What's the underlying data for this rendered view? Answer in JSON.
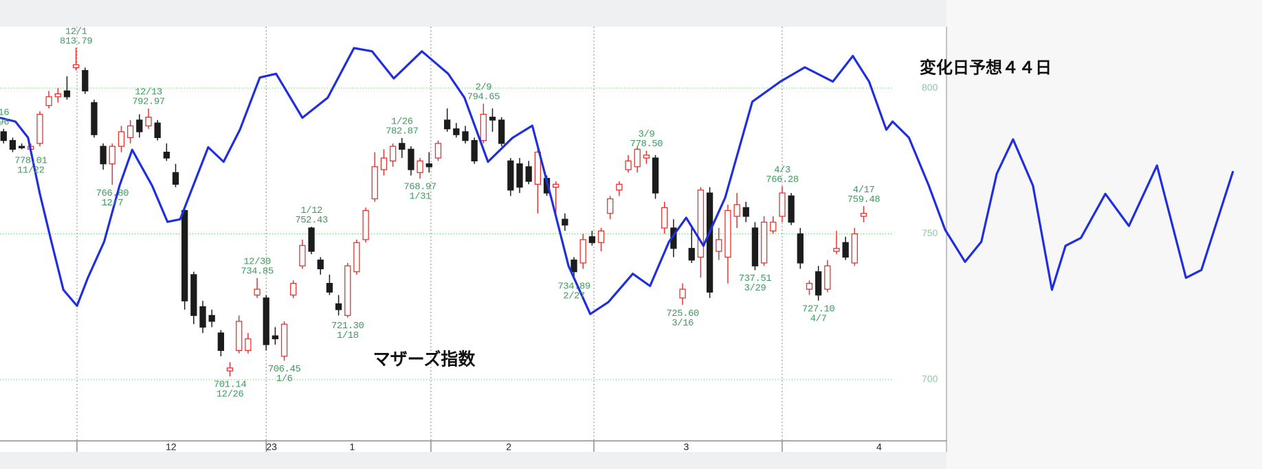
{
  "chart_data": {
    "type": "candlestick",
    "title": "マザーズ指数",
    "annotation": "変化日予想４４日",
    "xlim": [
      -0.4,
      139
    ],
    "ylim": [
      679,
      821
    ],
    "yticks": [
      700,
      750,
      800
    ],
    "xticks": [
      {
        "value": 18.5,
        "label": "12"
      },
      {
        "value": 29.6,
        "label": "23"
      },
      {
        "value": 38.5,
        "label": "1"
      },
      {
        "value": 55.8,
        "label": "2"
      },
      {
        "value": 75.4,
        "label": "3"
      },
      {
        "value": 96.7,
        "label": "4"
      }
    ],
    "xgrid": [
      8.1,
      29,
      47.2,
      65.2,
      86
    ],
    "grid": true,
    "series": [
      {
        "type": "candlestick",
        "up_color": "#e8322e",
        "down_color": "#1c1c1c",
        "x": [
          0,
          1,
          2,
          3,
          4,
          5,
          6,
          7,
          8,
          9,
          10,
          11,
          12,
          13,
          14,
          15,
          16,
          17,
          18,
          19,
          20,
          21,
          22,
          23,
          24,
          25,
          26,
          27,
          28,
          29,
          30,
          31,
          32,
          33,
          34,
          35,
          36,
          37,
          38,
          39,
          40,
          41,
          42,
          43,
          44,
          45,
          46,
          47,
          48,
          49,
          50,
          51,
          52,
          53,
          54,
          55,
          56,
          57,
          58,
          59,
          60,
          61,
          62,
          63,
          64,
          65,
          66,
          67,
          68,
          69,
          70,
          71,
          72,
          73,
          74,
          75,
          76,
          77,
          78,
          79,
          80,
          81,
          82,
          83,
          84,
          85,
          86,
          87,
          88,
          89,
          90,
          91,
          92,
          93,
          94,
          95
        ],
        "open": [
          785,
          782,
          780,
          779,
          781,
          794,
          797,
          799,
          807,
          806,
          795,
          780,
          774,
          780,
          783,
          789,
          787,
          788,
          778,
          771,
          758,
          736,
          725,
          722,
          716,
          703,
          710,
          710,
          729,
          728,
          715,
          708,
          729,
          739,
          752,
          741,
          733,
          726,
          722,
          737,
          748,
          762,
          772,
          775,
          781,
          779,
          771,
          774,
          776,
          789,
          786,
          785,
          782,
          782,
          790,
          789,
          775,
          774,
          773,
          767,
          769,
          766,
          755,
          741,
          740,
          749,
          747,
          757,
          765,
          772,
          773,
          776,
          776,
          752,
          752,
          728,
          745,
          742,
          764,
          744,
          742,
          756,
          759,
          752,
          740,
          751,
          756,
          763,
          750,
          731,
          737,
          731,
          744,
          747,
          740,
          756
        ],
        "high": [
          786,
          783,
          781,
          781,
          792,
          799,
          800,
          804,
          813.79,
          807,
          796,
          781,
          781,
          787,
          789,
          791,
          792.97,
          789,
          781,
          774,
          759,
          737,
          727,
          724,
          717,
          706,
          722,
          716,
          734.85,
          729,
          718,
          720,
          734,
          748,
          752.43,
          742,
          736,
          729,
          740,
          748,
          759,
          778,
          779,
          781,
          782.87,
          780,
          776,
          778,
          782,
          793,
          788,
          787,
          783,
          794.65,
          793,
          790,
          776,
          776,
          775,
          781,
          770,
          768,
          757,
          742,
          750,
          751,
          752,
          763,
          768,
          777,
          780,
          778.5,
          777,
          761,
          755,
          733,
          753,
          766,
          766,
          752,
          760,
          764,
          761,
          754,
          756,
          756,
          766.28,
          764,
          752,
          734,
          739,
          741,
          751,
          749,
          752,
          759.48
        ],
        "low": [
          781,
          778,
          779,
          778.01,
          780,
          793,
          795,
          796,
          806,
          798,
          783,
          772,
          766.8,
          778,
          781,
          783,
          786,
          782,
          775,
          766,
          724,
          719,
          716,
          718,
          708,
          701.14,
          709,
          709,
          728,
          710,
          712,
          706.45,
          728,
          738,
          743,
          736,
          729,
          722,
          721.3,
          736,
          747,
          761,
          770,
          773,
          776,
          770,
          768.97,
          771,
          775,
          785,
          783,
          781,
          774,
          781,
          785,
          780,
          763,
          764,
          767,
          757,
          763,
          755,
          751,
          734.89,
          738,
          746,
          744,
          755,
          763,
          771,
          771,
          774,
          762,
          750,
          742,
          725.6,
          740,
          735,
          728,
          741,
          733,
          752,
          754,
          737.51,
          739,
          750,
          754,
          753,
          738,
          729,
          727.1,
          730,
          743,
          741,
          739,
          754
        ],
        "close": [
          782,
          779,
          779.5,
          780,
          791,
          797,
          798,
          797,
          808,
          799,
          784,
          774,
          780,
          785,
          787,
          785,
          790,
          783,
          776,
          767,
          727,
          722,
          718,
          720,
          710,
          704,
          720,
          714,
          731,
          712,
          714,
          719,
          733,
          746,
          744,
          738,
          730,
          724,
          739,
          747,
          758,
          773,
          776,
          780,
          779,
          772,
          775,
          773,
          781,
          786,
          784,
          782,
          775,
          791,
          789,
          781,
          765,
          766,
          768,
          778,
          764,
          767,
          753,
          737,
          748,
          747,
          751,
          762,
          767,
          775,
          779,
          777,
          764,
          759,
          745,
          731,
          741,
          765,
          730,
          748,
          758,
          760,
          756,
          739,
          754,
          754,
          764,
          754,
          740,
          733,
          729,
          739,
          745,
          742,
          750,
          757
        ]
      },
      {
        "type": "line",
        "color": "#1f2fe0",
        "x": [
          -0.4,
          1.3,
          2.7,
          4,
          5.3,
          6.6,
          8.1,
          9.3,
          11.1,
          12.8,
          14.2,
          16.4,
          18.1,
          19.5,
          22.6,
          24.3,
          26.1,
          28.3,
          30.1,
          33,
          35.8,
          38.7,
          40.7,
          43.1,
          46.2,
          49.1,
          50.9,
          53.5,
          56.2,
          58.4,
          60.6,
          62.4,
          64.8,
          66.8,
          69.5,
          71.4,
          73.5,
          75.4,
          77.3,
          79.7,
          82.7,
          85.8,
          88.5,
          91.6,
          93.8,
          95.6,
          97.5,
          98.2,
          100,
          102.2,
          104,
          106.2,
          108,
          109.7,
          111.5,
          113.7,
          115.8,
          117.3,
          119,
          121.7,
          124.3,
          127.4,
          130.6,
          132.3,
          135.8
        ],
        "values": [
          789.8,
          788.5,
          783,
          763.7,
          747,
          730.8,
          725.3,
          734.9,
          747.3,
          766.5,
          778.8,
          766.5,
          754.1,
          755,
          779.7,
          774.7,
          785.7,
          803.6,
          804.9,
          789.8,
          796.7,
          813.7,
          812.6,
          803.3,
          812.6,
          804.9,
          796.7,
          774.7,
          782.9,
          787.1,
          761,
          739,
          722.5,
          726.6,
          736.3,
          732.1,
          747.3,
          755.5,
          745.9,
          762.4,
          795.3,
          802.2,
          807.1,
          802.2,
          811,
          802.2,
          785.7,
          788.5,
          783,
          766.5,
          751.4,
          740.4,
          747.3,
          770.6,
          782.4,
          766.5,
          730.8,
          745.9,
          748.6,
          763.7,
          752.7,
          773.4,
          734.9,
          737.6,
          771.5
        ]
      }
    ],
    "annotations": [
      {
        "x": 0,
        "position": "above",
        "lines": [
          "16",
          "96"
        ]
      },
      {
        "x": 3,
        "position": "below",
        "lines": [
          "778.01",
          "11/22"
        ]
      },
      {
        "x": 8,
        "position": "above",
        "lines": [
          "12/1",
          "813.79"
        ]
      },
      {
        "x": 12,
        "position": "below",
        "lines": [
          "766.80",
          "12/7"
        ]
      },
      {
        "x": 16,
        "position": "above",
        "lines": [
          "12/13",
          "792.97"
        ]
      },
      {
        "x": 25,
        "position": "below",
        "lines": [
          "701.14",
          "12/26"
        ]
      },
      {
        "x": 28,
        "position": "above",
        "lines": [
          "12/30",
          "734.85"
        ]
      },
      {
        "x": 31,
        "position": "below",
        "lines": [
          "706.45",
          "1/6"
        ]
      },
      {
        "x": 34,
        "position": "above",
        "lines": [
          "1/12",
          "752.43"
        ]
      },
      {
        "x": 38,
        "position": "below",
        "lines": [
          "721.30",
          "1/18"
        ]
      },
      {
        "x": 44,
        "position": "above",
        "lines": [
          "1/26",
          "782.87"
        ]
      },
      {
        "x": 46,
        "position": "below",
        "lines": [
          "768.97",
          "1/31"
        ]
      },
      {
        "x": 53,
        "position": "above",
        "lines": [
          "2/9",
          "794.65"
        ]
      },
      {
        "x": 63,
        "position": "below",
        "lines": [
          "734.89",
          "2/27"
        ]
      },
      {
        "x": 71,
        "position": "above",
        "lines": [
          "3/9",
          "778.50"
        ]
      },
      {
        "x": 75,
        "position": "below",
        "lines": [
          "725.60",
          "3/16"
        ]
      },
      {
        "x": 83,
        "position": "below",
        "lines": [
          "737.51",
          "3/29"
        ]
      },
      {
        "x": 86,
        "position": "above",
        "lines": [
          "4/3",
          "766.28"
        ]
      },
      {
        "x": 90,
        "position": "below",
        "lines": [
          "727.10",
          "4/7"
        ]
      },
      {
        "x": 95,
        "position": "above",
        "lines": [
          "4/17",
          "759.48"
        ]
      }
    ],
    "annotation_color": "#3f9a5e",
    "ytick_color": "#8cc9a0"
  }
}
